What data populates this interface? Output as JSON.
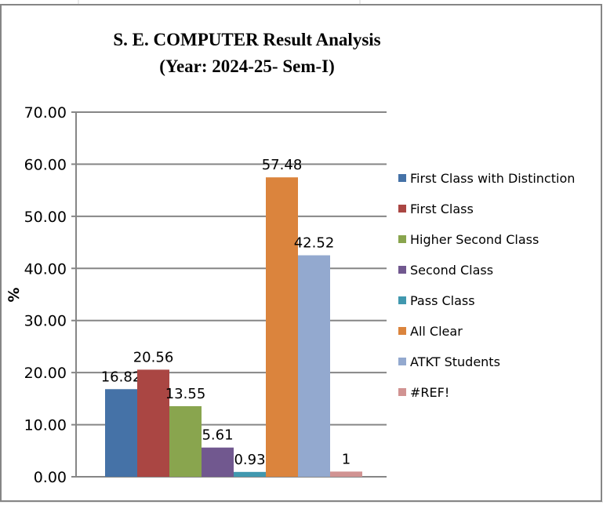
{
  "chart_data": {
    "type": "bar",
    "title": "S. E. COMPUTER  Result Analysis",
    "subtitle": "(Year: 2024-25- Sem-I)",
    "ylabel": "%",
    "xlabel": "",
    "ylim": [
      0,
      70
    ],
    "yticks": [
      "0.00",
      "10.00",
      "20.00",
      "30.00",
      "40.00",
      "50.00",
      "60.00",
      "70.00"
    ],
    "grid": true,
    "legend_position": "right",
    "series": [
      {
        "name": "First Class with Distinction",
        "value": 16.82,
        "label": "16.82",
        "color": "#4572A7"
      },
      {
        "name": "First Class",
        "value": 20.56,
        "label": "20.56",
        "color": "#AA4643"
      },
      {
        "name": "Higher Second Class",
        "value": 13.55,
        "label": "13.55",
        "color": "#89A54E"
      },
      {
        "name": "Second Class",
        "value": 5.61,
        "label": "5.61",
        "color": "#71588F"
      },
      {
        "name": "Pass Class",
        "value": 0.93,
        "label": "0.93",
        "color": "#4198AF"
      },
      {
        "name": "All Clear",
        "value": 57.48,
        "label": "57.48",
        "color": "#DB843D"
      },
      {
        "name": "ATKT Students",
        "value": 42.52,
        "label": "42.52",
        "color": "#93A9CF"
      },
      {
        "name": "#REF!",
        "value": 1,
        "label": "1",
        "color": "#D19392"
      }
    ]
  }
}
